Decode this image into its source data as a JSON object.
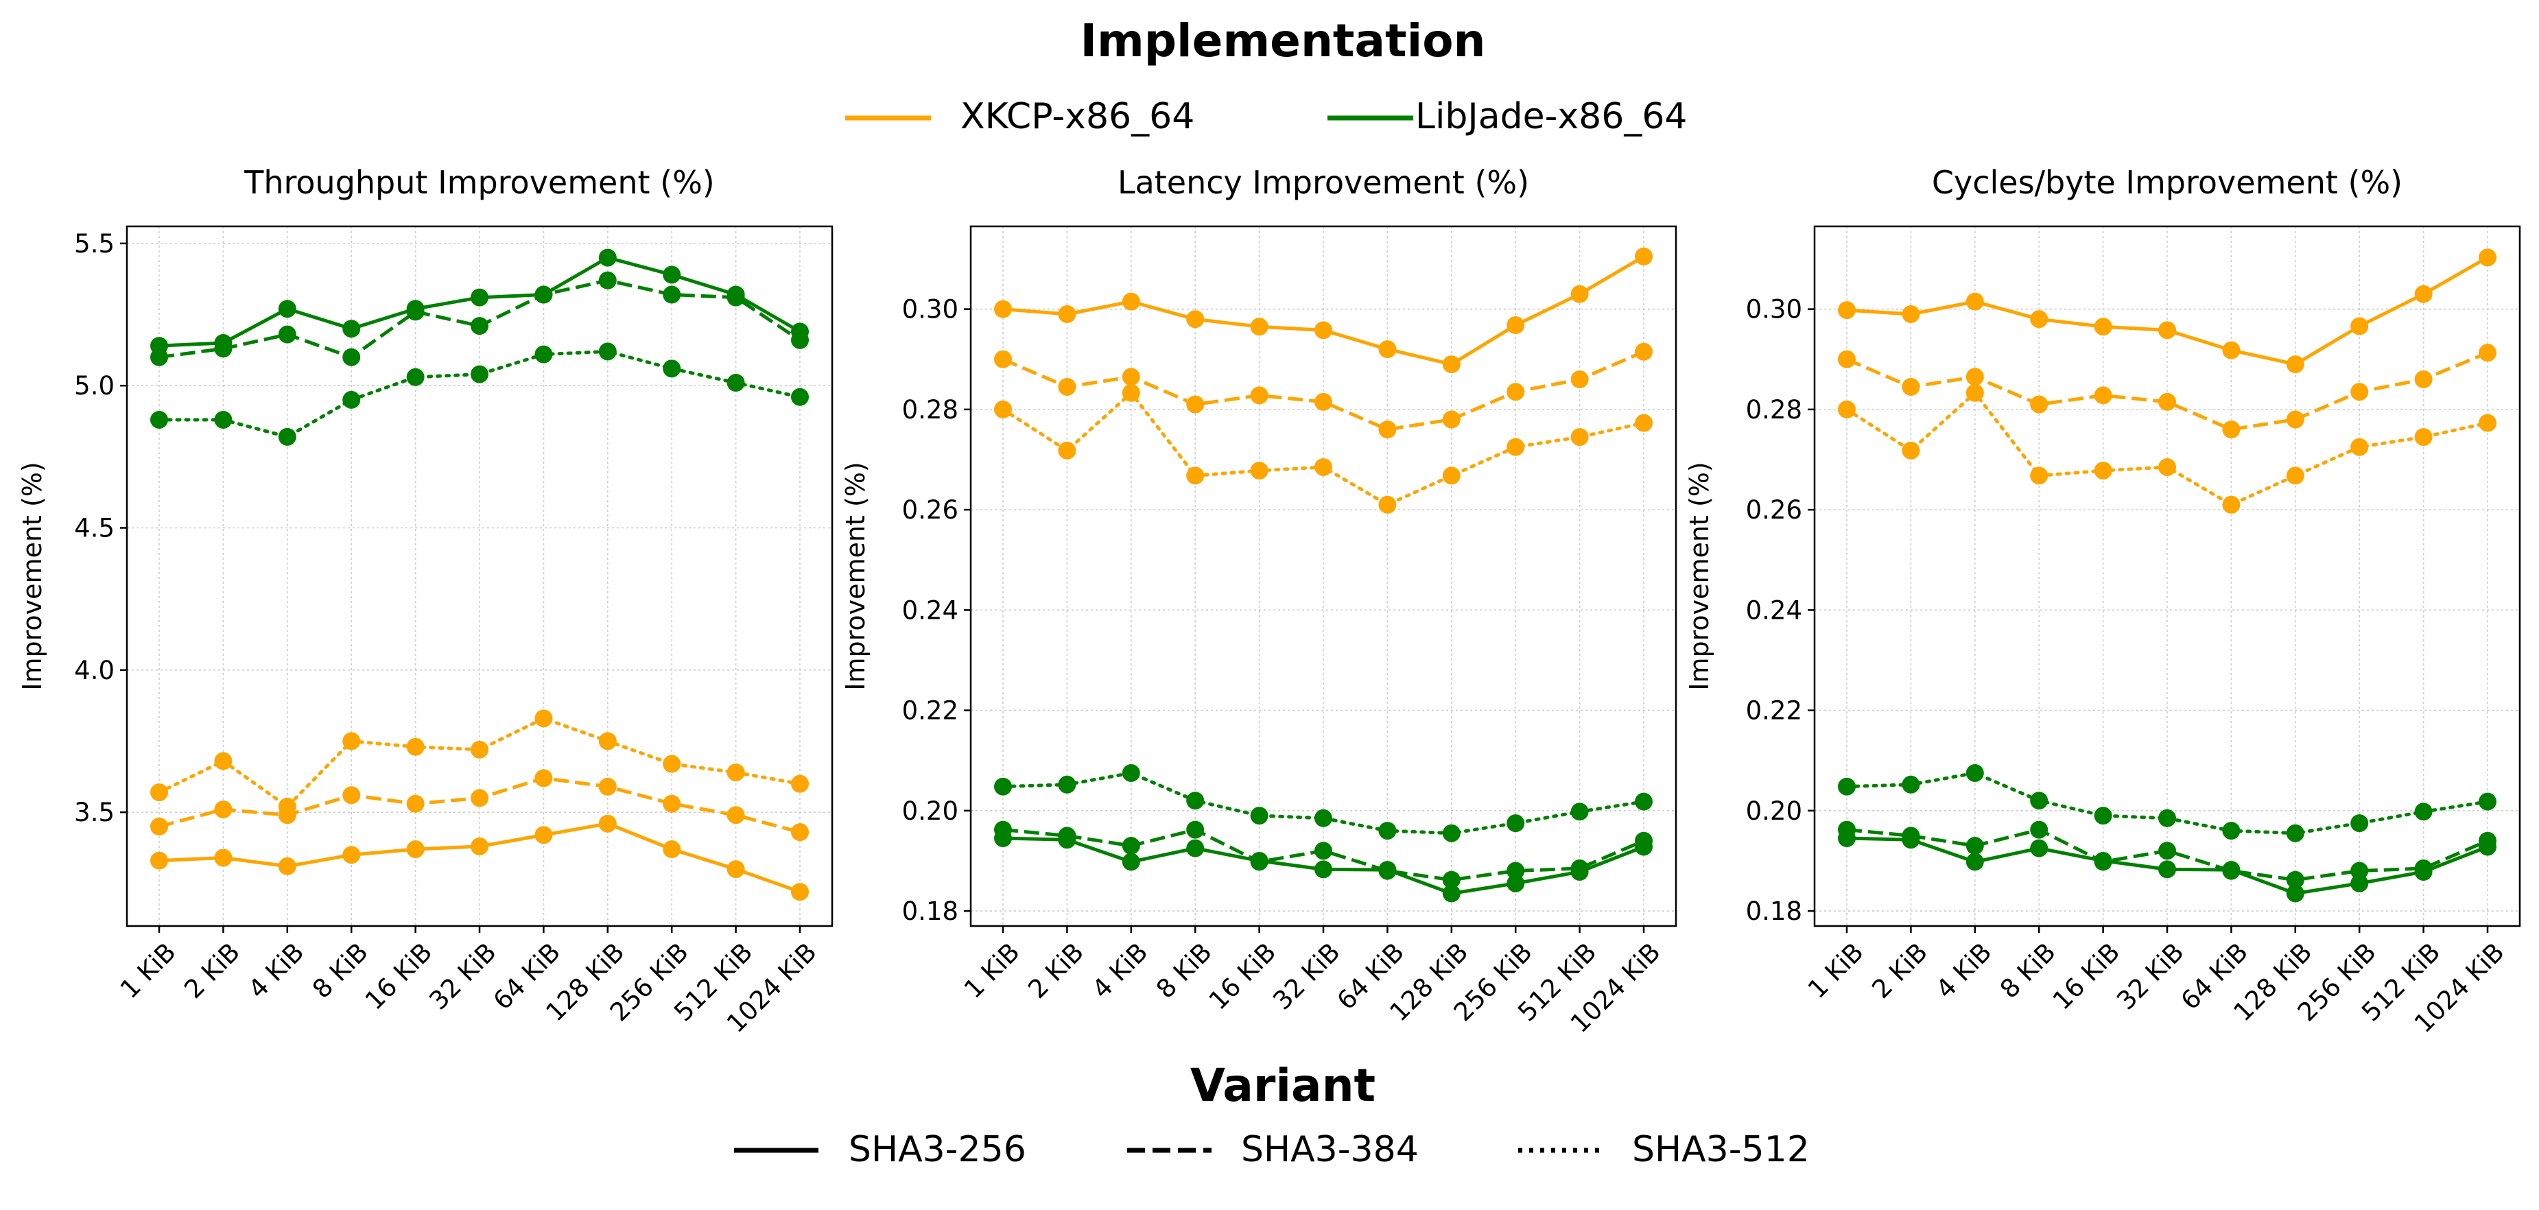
{
  "legends": {
    "implementation": {
      "title": "Implementation",
      "entries": [
        {
          "label": "XKCP-x86_64",
          "color": "#FFA500"
        },
        {
          "label": "LibJade-x86_64",
          "color": "#008000"
        }
      ]
    },
    "variant": {
      "title": "Variant",
      "entries": [
        {
          "label": "SHA3-256",
          "style": "solid"
        },
        {
          "label": "SHA3-384",
          "style": "dashed"
        },
        {
          "label": "SHA3-512",
          "style": "dotted"
        }
      ]
    }
  },
  "chart_data": [
    {
      "type": "line",
      "title": "Throughput Improvement (%)",
      "xlabel": "",
      "ylabel": "Improvement (%)",
      "categories": [
        "1 KiB",
        "2 KiB",
        "4 KiB",
        "8 KiB",
        "16 KiB",
        "32 KiB",
        "64 KiB",
        "128 KiB",
        "256 KiB",
        "512 KiB",
        "1024 KiB"
      ],
      "ylim": [
        3.1,
        5.56
      ],
      "yticks": [
        3.5,
        4.0,
        4.5,
        5.0,
        5.5
      ],
      "ytick_labels": [
        "3.5",
        "4.0",
        "4.5",
        "5.0",
        "5.5"
      ],
      "grid": true,
      "series": [
        {
          "implementation": "XKCP-x86_64",
          "variant": "SHA3-256",
          "color": "#FFA500",
          "dash": "solid",
          "values": [
            3.33,
            3.34,
            3.31,
            3.35,
            3.37,
            3.38,
            3.42,
            3.46,
            3.37,
            3.3,
            3.22
          ]
        },
        {
          "implementation": "XKCP-x86_64",
          "variant": "SHA3-384",
          "color": "#FFA500",
          "dash": "dashed",
          "values": [
            3.45,
            3.51,
            3.49,
            3.56,
            3.53,
            3.55,
            3.62,
            3.59,
            3.53,
            3.49,
            3.43
          ]
        },
        {
          "implementation": "XKCP-x86_64",
          "variant": "SHA3-512",
          "color": "#FFA500",
          "dash": "dotted",
          "values": [
            3.57,
            3.68,
            3.52,
            3.75,
            3.73,
            3.72,
            3.83,
            3.75,
            3.67,
            3.64,
            3.6
          ]
        },
        {
          "implementation": "LibJade-x86_64",
          "variant": "SHA3-256",
          "color": "#008000",
          "dash": "solid",
          "values": [
            5.14,
            5.15,
            5.27,
            5.2,
            5.27,
            5.31,
            5.32,
            5.45,
            5.39,
            5.32,
            5.19
          ]
        },
        {
          "implementation": "LibJade-x86_64",
          "variant": "SHA3-384",
          "color": "#008000",
          "dash": "dashed",
          "values": [
            5.1,
            5.13,
            5.18,
            5.1,
            5.26,
            5.21,
            5.32,
            5.37,
            5.32,
            5.31,
            5.16
          ]
        },
        {
          "implementation": "LibJade-x86_64",
          "variant": "SHA3-512",
          "color": "#008000",
          "dash": "dotted",
          "values": [
            4.88,
            4.88,
            4.82,
            4.95,
            5.03,
            5.04,
            5.11,
            5.12,
            5.06,
            5.01,
            4.96
          ]
        }
      ]
    },
    {
      "type": "line",
      "title": "Latency Improvement (%)",
      "xlabel": "",
      "ylabel": "Improvement (%)",
      "categories": [
        "1 KiB",
        "2 KiB",
        "4 KiB",
        "8 KiB",
        "16 KiB",
        "32 KiB",
        "64 KiB",
        "128 KiB",
        "256 KiB",
        "512 KiB",
        "1024 KiB"
      ],
      "ylim": [
        0.177,
        0.3165
      ],
      "yticks": [
        0.18,
        0.2,
        0.22,
        0.24,
        0.26,
        0.28,
        0.3
      ],
      "ytick_labels": [
        "0.18",
        "0.20",
        "0.22",
        "0.24",
        "0.26",
        "0.28",
        "0.30"
      ],
      "grid": true,
      "series": [
        {
          "implementation": "XKCP-x86_64",
          "variant": "SHA3-256",
          "color": "#FFA500",
          "dash": "solid",
          "values": [
            0.3,
            0.299,
            0.3015,
            0.298,
            0.2965,
            0.2958,
            0.292,
            0.289,
            0.2968,
            0.303,
            0.3105
          ]
        },
        {
          "implementation": "XKCP-x86_64",
          "variant": "SHA3-384",
          "color": "#FFA500",
          "dash": "dashed",
          "values": [
            0.29,
            0.2845,
            0.2865,
            0.281,
            0.2828,
            0.2815,
            0.276,
            0.278,
            0.2835,
            0.286,
            0.2915
          ]
        },
        {
          "implementation": "XKCP-x86_64",
          "variant": "SHA3-512",
          "color": "#FFA500",
          "dash": "dotted",
          "values": [
            0.28,
            0.2718,
            0.2833,
            0.2668,
            0.2678,
            0.2685,
            0.261,
            0.2668,
            0.2725,
            0.2745,
            0.2773
          ]
        },
        {
          "implementation": "LibJade-x86_64",
          "variant": "SHA3-256",
          "color": "#008000",
          "dash": "solid",
          "values": [
            0.1945,
            0.1942,
            0.1898,
            0.1925,
            0.19,
            0.1883,
            0.1882,
            0.1835,
            0.1855,
            0.1878,
            0.1928
          ]
        },
        {
          "implementation": "LibJade-x86_64",
          "variant": "SHA3-384",
          "color": "#008000",
          "dash": "dashed",
          "values": [
            0.1962,
            0.195,
            0.193,
            0.1962,
            0.1898,
            0.192,
            0.188,
            0.1862,
            0.188,
            0.1885,
            0.194
          ]
        },
        {
          "implementation": "LibJade-x86_64",
          "variant": "SHA3-512",
          "color": "#008000",
          "dash": "dotted",
          "values": [
            0.2048,
            0.2052,
            0.2075,
            0.202,
            0.199,
            0.1985,
            0.196,
            0.1955,
            0.1975,
            0.1998,
            0.2018
          ]
        }
      ]
    },
    {
      "type": "line",
      "title": "Cycles/byte Improvement (%)",
      "xlabel": "",
      "ylabel": "Improvement (%)",
      "categories": [
        "1 KiB",
        "2 KiB",
        "4 KiB",
        "8 KiB",
        "16 KiB",
        "32 KiB",
        "64 KiB",
        "128 KiB",
        "256 KiB",
        "512 KiB",
        "1024 KiB"
      ],
      "ylim": [
        0.177,
        0.3165
      ],
      "yticks": [
        0.18,
        0.2,
        0.22,
        0.24,
        0.26,
        0.28,
        0.3
      ],
      "ytick_labels": [
        "0.18",
        "0.20",
        "0.22",
        "0.24",
        "0.26",
        "0.28",
        "0.30"
      ],
      "grid": true,
      "series": [
        {
          "implementation": "XKCP-x86_64",
          "variant": "SHA3-256",
          "color": "#FFA500",
          "dash": "solid",
          "values": [
            0.2998,
            0.299,
            0.3015,
            0.298,
            0.2965,
            0.2958,
            0.2918,
            0.289,
            0.2966,
            0.303,
            0.3103
          ]
        },
        {
          "implementation": "XKCP-x86_64",
          "variant": "SHA3-384",
          "color": "#FFA500",
          "dash": "dashed",
          "values": [
            0.29,
            0.2845,
            0.2865,
            0.281,
            0.2828,
            0.2815,
            0.276,
            0.278,
            0.2835,
            0.286,
            0.2913
          ]
        },
        {
          "implementation": "XKCP-x86_64",
          "variant": "SHA3-512",
          "color": "#FFA500",
          "dash": "dotted",
          "values": [
            0.28,
            0.2718,
            0.2833,
            0.2668,
            0.2678,
            0.2685,
            0.261,
            0.2668,
            0.2725,
            0.2745,
            0.2773
          ]
        },
        {
          "implementation": "LibJade-x86_64",
          "variant": "SHA3-256",
          "color": "#008000",
          "dash": "solid",
          "values": [
            0.1945,
            0.1942,
            0.1898,
            0.1925,
            0.19,
            0.1883,
            0.1882,
            0.1835,
            0.1855,
            0.1878,
            0.1928
          ]
        },
        {
          "implementation": "LibJade-x86_64",
          "variant": "SHA3-384",
          "color": "#008000",
          "dash": "dashed",
          "values": [
            0.1962,
            0.195,
            0.193,
            0.1962,
            0.1898,
            0.192,
            0.188,
            0.1862,
            0.188,
            0.1885,
            0.194
          ]
        },
        {
          "implementation": "LibJade-x86_64",
          "variant": "SHA3-512",
          "color": "#008000",
          "dash": "dotted",
          "values": [
            0.2048,
            0.2052,
            0.2075,
            0.202,
            0.199,
            0.1985,
            0.196,
            0.1955,
            0.1975,
            0.1998,
            0.2018
          ]
        }
      ]
    }
  ]
}
